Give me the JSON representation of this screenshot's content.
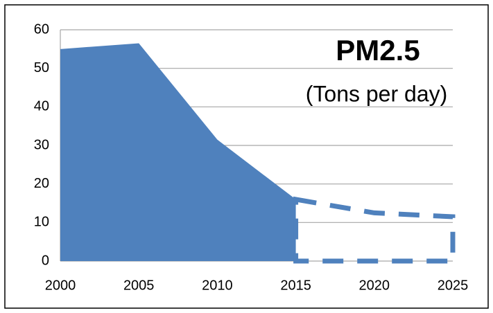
{
  "chart_data": {
    "type": "area",
    "title": "PM2.5",
    "subtitle": "(Tons per day)",
    "x": [
      2000,
      2005,
      2010,
      2015,
      2020,
      2025
    ],
    "series": [
      {
        "color": "#4f81bd",
        "values": [
          55,
          56.5,
          31.5,
          16,
          null,
          null
        ]
      },
      {
        "color": "#4f81bd",
        "dashed": true,
        "values": [
          null,
          null,
          null,
          16,
          12.5,
          11.5
        ]
      }
    ],
    "xlim": [
      2000,
      2025
    ],
    "xticks": [
      2000,
      2005,
      2010,
      2015,
      2020,
      2025
    ],
    "ylim": [
      0,
      60
    ],
    "yticks": [
      0,
      10,
      20,
      30,
      40,
      50,
      60
    ],
    "grid": true
  }
}
